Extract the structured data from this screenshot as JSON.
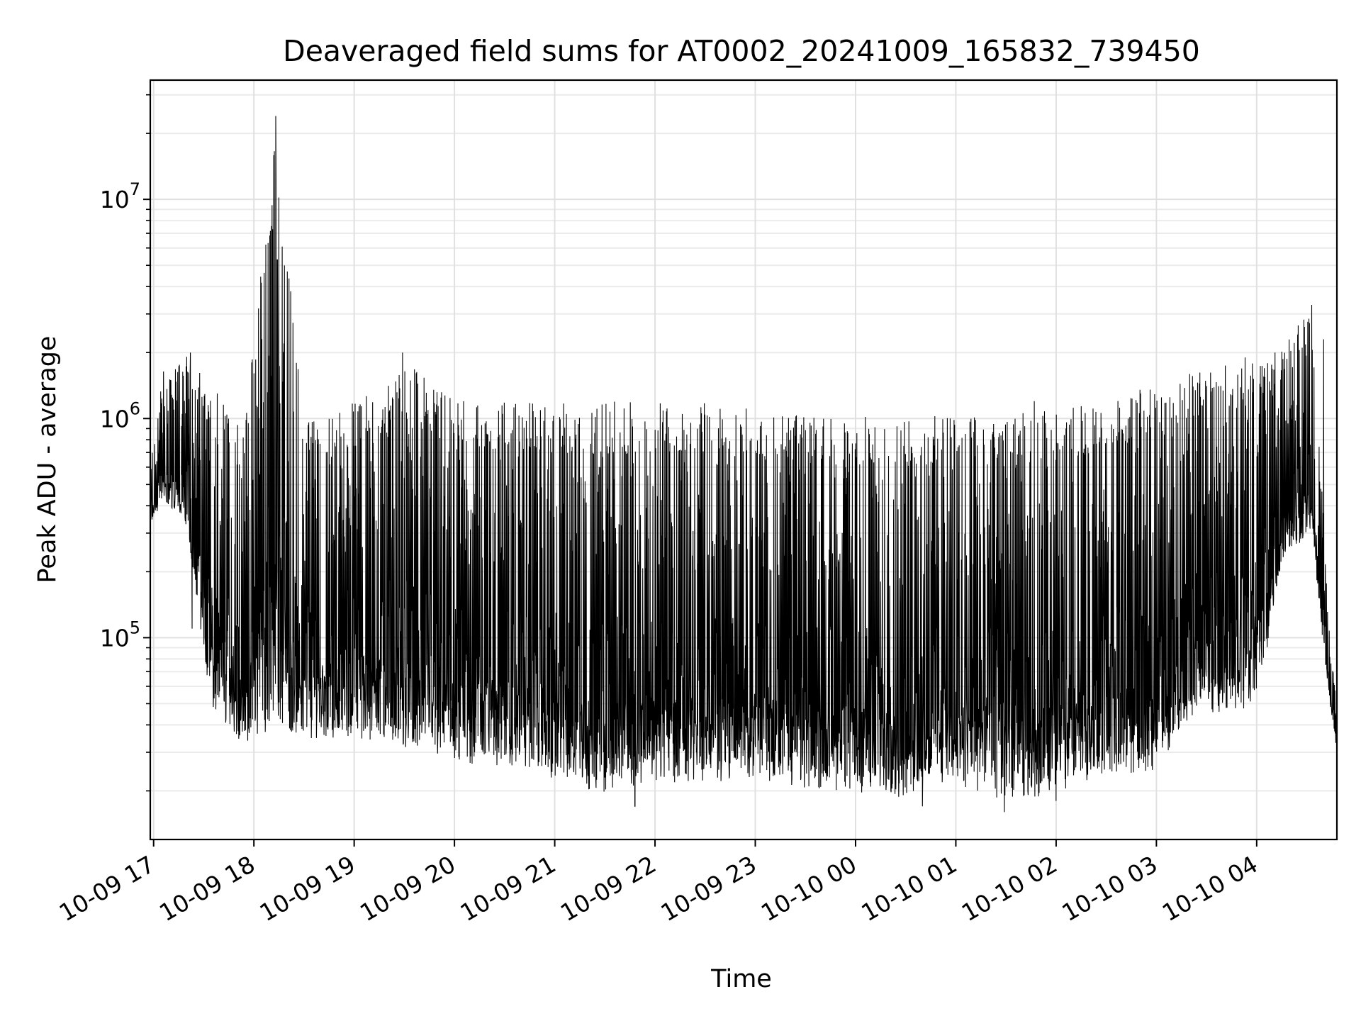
{
  "chart_data": {
    "type": "line",
    "title": "Deaveraged field sums for AT0002_20241009_165832_739450",
    "xlabel": "Time",
    "ylabel": "Peak ADU - average",
    "y_scale": "log",
    "ylim": [
      12000,
      35000000
    ],
    "xlim": [
      "2024-10-09 16:58",
      "2024-10-10 04:48"
    ],
    "x_ticks": [
      "10-09 17",
      "10-09 18",
      "10-09 19",
      "10-09 20",
      "10-09 21",
      "10-09 22",
      "10-09 23",
      "10-10 00",
      "10-10 01",
      "10-10 02",
      "10-10 03",
      "10-10 04"
    ],
    "y_ticks": [
      {
        "base": "10",
        "exp": "5",
        "value": 100000
      },
      {
        "base": "10",
        "exp": "6",
        "value": 1000000
      },
      {
        "base": "10",
        "exp": "7",
        "value": 10000000
      }
    ],
    "grid": true,
    "line_color": "#000000",
    "series": [
      {
        "name": "",
        "envelope": [
          {
            "t": "2024-10-09 16:58",
            "lo": 320000,
            "hi": 620000
          },
          {
            "t": "2024-10-09 17:06",
            "lo": 400000,
            "hi": 1700000
          },
          {
            "t": "2024-10-09 17:20",
            "lo": 300000,
            "hi": 2000000
          },
          {
            "t": "2024-10-09 17:35",
            "lo": 40000,
            "hi": 1500000
          },
          {
            "t": "2024-10-09 17:55",
            "lo": 30000,
            "hi": 1200000
          },
          {
            "t": "2024-10-09 18:13",
            "lo": 35000,
            "hi": 24000000
          },
          {
            "t": "2024-10-09 18:30",
            "lo": 32000,
            "hi": 1100000
          },
          {
            "t": "2024-10-09 19:00",
            "lo": 32000,
            "hi": 1300000
          },
          {
            "t": "2024-10-09 19:30",
            "lo": 29000,
            "hi": 2000000
          },
          {
            "t": "2024-10-09 20:00",
            "lo": 23000,
            "hi": 1300000
          },
          {
            "t": "2024-10-09 20:30",
            "lo": 24000,
            "hi": 1300000
          },
          {
            "t": "2024-10-09 21:00",
            "lo": 20000,
            "hi": 1300000
          },
          {
            "t": "2024-10-09 21:30",
            "lo": 18000,
            "hi": 1300000
          },
          {
            "t": "2024-10-09 22:00",
            "lo": 20000,
            "hi": 1300000
          },
          {
            "t": "2024-10-09 22:30",
            "lo": 20000,
            "hi": 1300000
          },
          {
            "t": "2024-10-09 23:00",
            "lo": 21000,
            "hi": 1200000
          },
          {
            "t": "2024-10-09 23:30",
            "lo": 19000,
            "hi": 1150000
          },
          {
            "t": "2024-10-10 00:00",
            "lo": 18000,
            "hi": 1100000
          },
          {
            "t": "2024-10-10 00:30",
            "lo": 17000,
            "hi": 1150000
          },
          {
            "t": "2024-10-10 01:00",
            "lo": 20000,
            "hi": 1100000
          },
          {
            "t": "2024-10-10 01:30",
            "lo": 16000,
            "hi": 1150000
          },
          {
            "t": "2024-10-10 02:00",
            "lo": 18000,
            "hi": 1200000
          },
          {
            "t": "2024-10-10 02:30",
            "lo": 22000,
            "hi": 1300000
          },
          {
            "t": "2024-10-10 03:00",
            "lo": 22000,
            "hi": 1600000
          },
          {
            "t": "2024-10-10 03:20",
            "lo": 40000,
            "hi": 1800000
          },
          {
            "t": "2024-10-10 04:00",
            "lo": 45000,
            "hi": 2000000
          },
          {
            "t": "2024-10-10 04:15",
            "lo": 200000,
            "hi": 2300000
          },
          {
            "t": "2024-10-10 04:32",
            "lo": 300000,
            "hi": 3300000
          },
          {
            "t": "2024-10-10 04:38",
            "lo": 120000,
            "hi": 700000
          },
          {
            "t": "2024-10-10 04:43",
            "lo": 55000,
            "hi": 120000
          },
          {
            "t": "2024-10-10 04:48",
            "lo": 28000,
            "hi": 50000
          }
        ],
        "spikes": [
          {
            "t": "2024-10-09 18:13",
            "value": 24000000
          },
          {
            "t": "2024-10-09 18:14",
            "value": 5300000
          },
          {
            "t": "2024-10-09 17:22",
            "value": 2000000
          },
          {
            "t": "2024-10-09 19:29",
            "value": 2000000
          },
          {
            "t": "2024-10-10 04:11",
            "value": 2000000
          },
          {
            "t": "2024-10-10 04:33",
            "value": 3300000
          },
          {
            "t": "2024-10-10 04:40",
            "value": 2300000
          },
          {
            "t": "2024-10-10 03:53",
            "value": 1900000
          },
          {
            "t": "2024-10-10 01:47",
            "value": 1200000
          }
        ],
        "dips": [
          {
            "t": "2024-10-09 17:23",
            "value": 110000
          },
          {
            "t": "2024-10-09 21:48",
            "value": 17000
          },
          {
            "t": "2024-10-10 00:40",
            "value": 17000
          },
          {
            "t": "2024-10-10 01:29",
            "value": 16000
          },
          {
            "t": "2024-10-10 02:00",
            "value": 18000
          }
        ]
      }
    ]
  }
}
